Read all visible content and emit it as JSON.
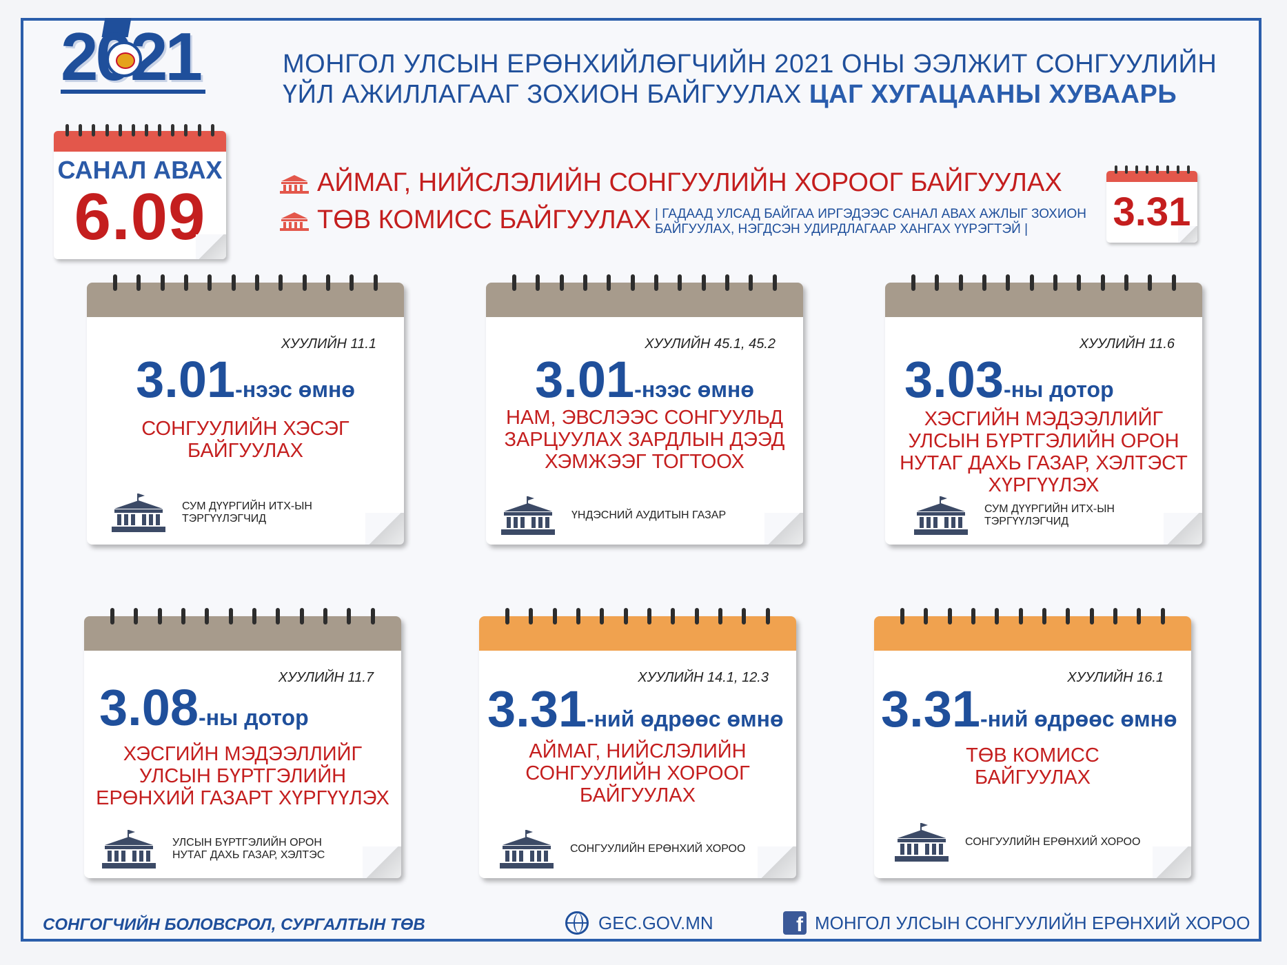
{
  "logo": {
    "year": "2021"
  },
  "title": {
    "line1": "МОНГОЛ  УЛСЫН ЕРӨНХИЙЛӨГЧИЙН 2021 ОНЫ ЭЭЛЖИТ СОНГУУЛИЙН",
    "line2_normal": "ҮЙЛ АЖИЛЛАГААГ ЗОХИОН БАЙГУУЛАХ ",
    "line2_bold": "ЦАГ ХУГАЦААНЫ ХУВААРЬ"
  },
  "vote": {
    "label": "САНАЛ АВАХ",
    "date": "6.09"
  },
  "top_items": {
    "item1": "АЙМАГ, НИЙСЛЭЛИЙН СОНГУУЛИЙН ХОРООГ БАЙГУУЛАХ",
    "item2": "ТӨВ КОМИСС БАЙГУУЛАХ",
    "note": "| ГАДААД УЛСАД БАЙГАА ИРГЭДЭЭС САНАЛ АВАХ АЖЛЫГ ЗОХИОН БАЙГУУЛАХ, НЭГДСЭН УДИРДЛАГААР ХАНГАХ ҮҮРЭГТЭЙ |",
    "date": "3.31"
  },
  "cards": [
    {
      "law": "ХУУЛИЙН 11.1",
      "num": "3.01",
      "suffix": "-нээс өмнө",
      "desc": "СОНГУУЛИЙН ХЭСЭГ БАЙГУУЛАХ",
      "org": "СУМ ДҮҮРГИЙН ИТХ-ЫН ТЭРГҮҮЛЭГЧИД",
      "color": "brown"
    },
    {
      "law": "ХУУЛИЙН 45.1, 45.2",
      "num": "3.01",
      "suffix": "-нээс өмнө",
      "desc": "НАМ, ЭВСЛЭЭС СОНГУУЛЬД ЗАРЦУУЛАХ ЗАРДЛЫН ДЭЭД ХЭМЖЭЭГ ТОГТООХ",
      "org": "ҮНДЭСНИЙ АУДИТЫН ГАЗАР",
      "color": "brown"
    },
    {
      "law": "ХУУЛИЙН 11.6",
      "num": "3.03",
      "suffix": "-ны  дотор",
      "desc": "ХЭСГИЙН МЭДЭЭЛЛИЙГ УЛСЫН БҮРТГЭЛИЙН ОРОН НУТАГ ДАХЬ ГАЗАР,  ХЭЛТЭСТ ХҮРГҮҮЛЭХ",
      "org": "СУМ ДҮҮРГИЙН ИТХ-ЫН ТЭРГҮҮЛЭГЧИД",
      "color": "brown"
    },
    {
      "law": "ХУУЛИЙН 11.7",
      "num": "3.08",
      "suffix": "-ны  дотор",
      "desc": "ХЭСГИЙН МЭДЭЭЛЛИЙГ УЛСЫН БҮРТГЭЛИЙН ЕРӨНХИЙ ГАЗАРТ ХҮРГҮҮЛЭХ",
      "org": "УЛСЫН БҮРТГЭЛИЙН ОРОН НУТАГ ДАХЬ ГАЗАР, ХЭЛТЭС",
      "color": "brown"
    },
    {
      "law": "ХУУЛИЙН 14.1, 12.3",
      "num": "3.31",
      "suffix": "-ний өдрөөс өмнө",
      "desc": "АЙМАГ, НИЙСЛЭЛИЙН СОНГУУЛИЙН ХОРООГ БАЙГУУЛАХ",
      "org": "СОНГУУЛИЙН ЕРӨНХИЙ ХОРОО",
      "color": "orange"
    },
    {
      "law": "ХУУЛИЙН 16.1",
      "num": "3.31",
      "suffix": "-ний өдрөөс өмнө",
      "desc": "ТӨВ КОМИСС БАЙГУУЛАХ",
      "org": "СОНГУУЛИЙН ЕРӨНХИЙ ХОРОО",
      "color": "orange"
    }
  ],
  "footer": {
    "left": "СОНГОГЧИЙН БОЛОВСРОЛ, СУРГАЛТЫН ТӨВ",
    "web": "GEC.GOV.MN",
    "facebook": "МОНГОЛ УЛСЫН СОНГУУЛИЙН ЕРӨНХИЙ ХОРОО"
  },
  "colors": {
    "blue": "#1f4f9b",
    "red": "#c41e1e",
    "brown": "#a79b8c",
    "orange": "#f0a24f"
  },
  "icons": {
    "building": "government-building-icon",
    "globe": "globe-icon",
    "facebook": "facebook-icon"
  }
}
